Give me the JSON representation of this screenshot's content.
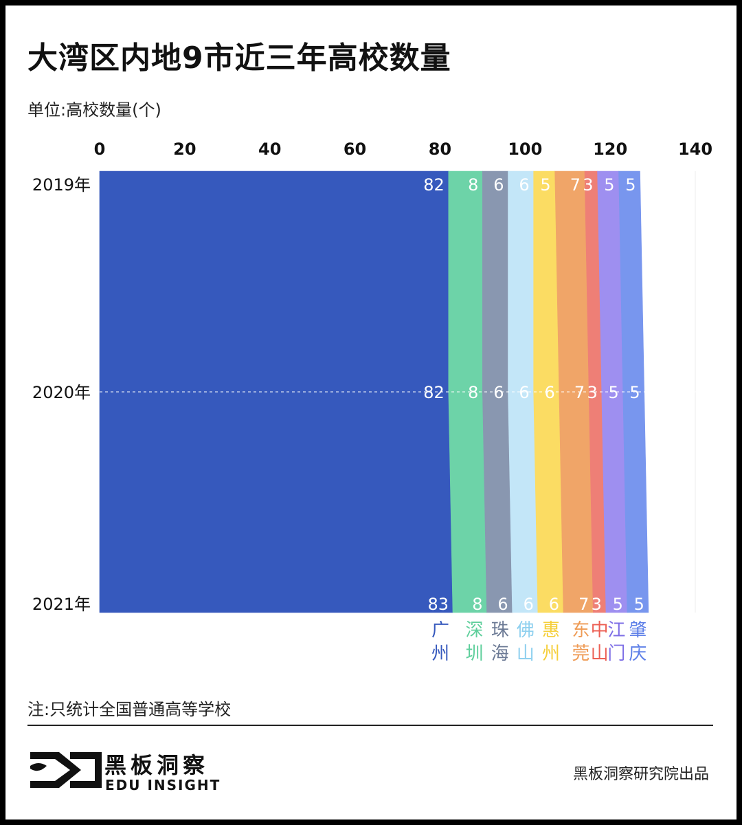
{
  "title": "大湾区内地9市近三年高校数量",
  "unit_label": "单位:高校数量(个)",
  "note": "注:只统计全国普通高等学校",
  "brand": {
    "name_cn": "黑板洞察",
    "name_en": "EDU INSIGHT",
    "credit": "黑板洞察研究院出品"
  },
  "chart_data": {
    "type": "stacked-bar",
    "orientation": "horizontal",
    "x_ticks": [
      "0",
      "20",
      "40",
      "60",
      "80",
      "100",
      "120",
      "140"
    ],
    "xlim": [
      0,
      140
    ],
    "grid": true,
    "years": [
      "2019年",
      "2020年",
      "2021年"
    ],
    "series": [
      {
        "name": "广州",
        "label_lines": [
          "广",
          "州"
        ],
        "color": "#3659bd",
        "label_color": "#3659bd",
        "value_color": "#ffffff",
        "values": [
          82,
          82,
          83
        ]
      },
      {
        "name": "深圳",
        "label_lines": [
          "深",
          "圳"
        ],
        "color": "#6dd3a8",
        "label_color": "#5fcf9c",
        "value_color": "#ffffff",
        "values": [
          8,
          8,
          8
        ]
      },
      {
        "name": "珠海",
        "label_lines": [
          "珠",
          "海"
        ],
        "color": "#8997b0",
        "label_color": "#6c7a95",
        "value_color": "#ffffff",
        "values": [
          6,
          6,
          6
        ]
      },
      {
        "name": "佛山",
        "label_lines": [
          "佛",
          "山"
        ],
        "color": "#c3e6f8",
        "label_color": "#8fd0ef",
        "value_color": "#ffffff",
        "values": [
          6,
          6,
          6
        ]
      },
      {
        "name": "惠州",
        "label_lines": [
          "惠",
          "州"
        ],
        "color": "#fbdc63",
        "label_color": "#f5cf3c",
        "value_color": "#ffffff",
        "values": [
          5,
          6,
          6
        ]
      },
      {
        "name": "东莞",
        "label_lines": [
          "东",
          "莞"
        ],
        "color": "#f0a568",
        "label_color": "#ef9b55",
        "value_color": "#ffffff",
        "values": [
          7,
          7,
          7
        ]
      },
      {
        "name": "中山",
        "label_lines": [
          "中",
          "山"
        ],
        "color": "#ee7f76",
        "label_color": "#ec5f54",
        "value_color": "#ffffff",
        "values": [
          3,
          3,
          3
        ]
      },
      {
        "name": "江门",
        "label_lines": [
          "江",
          "门"
        ],
        "color": "#9e8ff0",
        "label_color": "#7e6fe6",
        "value_color": "#ffffff",
        "values": [
          5,
          5,
          5
        ]
      },
      {
        "name": "肇庆",
        "label_lines": [
          "肇",
          "庆"
        ],
        "color": "#7896ee",
        "label_color": "#5d7fe8",
        "value_color": "#ffffff",
        "values": [
          5,
          5,
          5
        ]
      }
    ]
  }
}
